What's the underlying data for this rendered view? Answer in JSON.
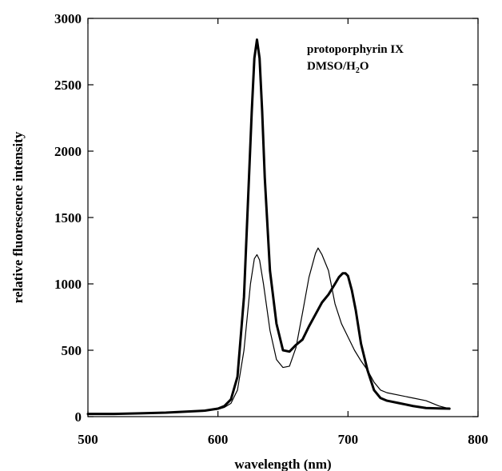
{
  "chart_data": {
    "type": "line",
    "xlabel": "wavelength (nm)",
    "ylabel": "relative fluorescence intensity",
    "xlim": [
      500,
      800
    ],
    "ylim": [
      0,
      3000
    ],
    "xticks": [
      500,
      600,
      700,
      800
    ],
    "yticks": [
      0,
      500,
      1000,
      1500,
      2000,
      2500,
      3000
    ],
    "grid": false,
    "annotations": [
      {
        "text": "protoporphyrin IX"
      },
      {
        "text": "DMSO/H",
        "sub": "2",
        "text_after": "O"
      }
    ],
    "series": [
      {
        "line_style": "thick",
        "x": [
          500,
          520,
          540,
          560,
          580,
          590,
          600,
          605,
          610,
          615,
          620,
          623,
          626,
          628,
          630,
          632,
          634,
          636,
          640,
          645,
          650,
          655,
          660,
          665,
          670,
          675,
          680,
          685,
          690,
          693,
          696,
          698,
          700,
          703,
          706,
          710,
          715,
          720,
          725,
          730,
          740,
          750,
          760,
          770,
          778
        ],
        "y": [
          20,
          20,
          25,
          30,
          40,
          45,
          60,
          80,
          130,
          300,
          900,
          1600,
          2300,
          2700,
          2840,
          2700,
          2300,
          1800,
          1100,
          700,
          500,
          490,
          540,
          580,
          680,
          770,
          860,
          920,
          1000,
          1050,
          1080,
          1080,
          1060,
          950,
          800,
          550,
          350,
          200,
          140,
          120,
          100,
          80,
          65,
          62,
          60
        ]
      },
      {
        "line_style": "thin",
        "x": [
          500,
          540,
          580,
          600,
          605,
          610,
          615,
          620,
          625,
          628,
          630,
          632,
          635,
          640,
          645,
          650,
          655,
          660,
          665,
          670,
          675,
          677,
          680,
          685,
          690,
          695,
          700,
          705,
          710,
          715,
          720,
          725,
          730,
          740,
          750,
          760,
          770,
          778
        ],
        "y": [
          20,
          25,
          40,
          55,
          70,
          100,
          200,
          500,
          1000,
          1190,
          1220,
          1180,
          1000,
          650,
          430,
          370,
          380,
          520,
          780,
          1050,
          1230,
          1270,
          1220,
          1100,
          850,
          700,
          600,
          500,
          420,
          350,
          260,
          200,
          180,
          160,
          140,
          120,
          80,
          60
        ]
      }
    ]
  }
}
